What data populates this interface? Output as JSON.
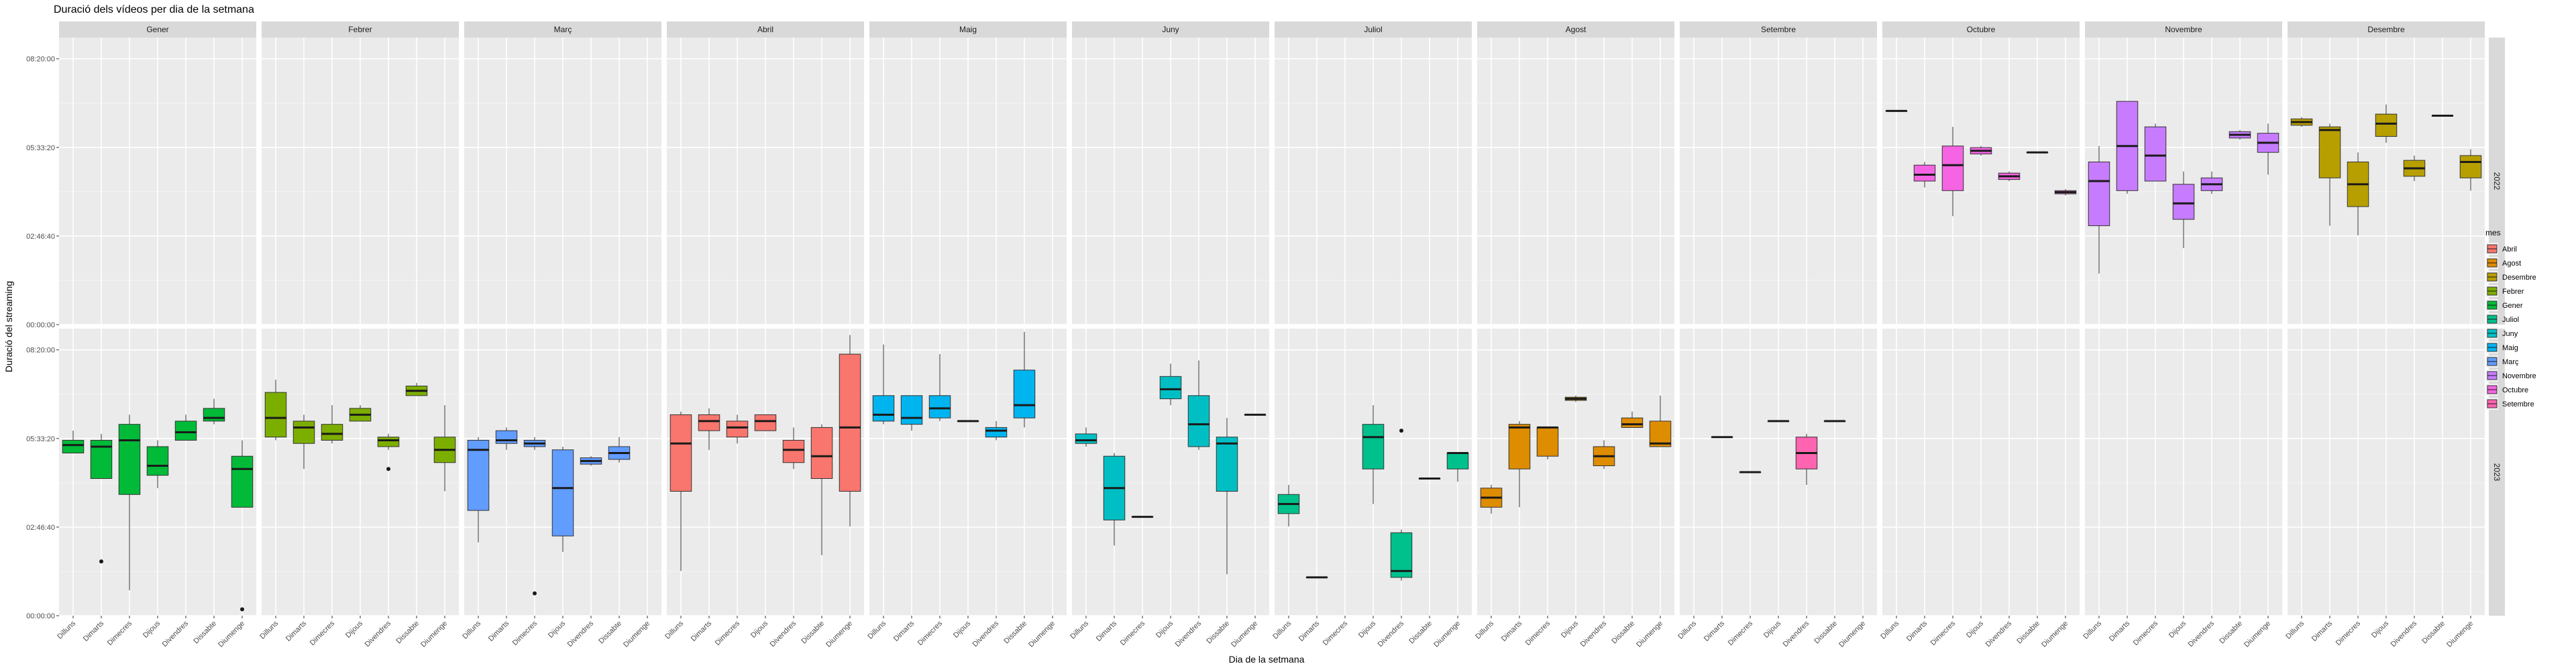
{
  "chart_data": {
    "type": "boxplot",
    "title": "Duració dels vídeos per dia de la setmana",
    "xlabel": "Dia de la setmana",
    "ylabel": "Duració del streaming",
    "y_unit": "hours",
    "ylim": [
      0,
      9
    ],
    "y_ticks": [
      {
        "value": 0,
        "label": "00:00:00"
      },
      {
        "value": 2.777,
        "label": "02:46:40"
      },
      {
        "value": 5.555,
        "label": "05:33:20"
      },
      {
        "value": 8.333,
        "label": "08:20:00"
      }
    ],
    "days": [
      "Dilluns",
      "Dimarts",
      "Dimecres",
      "Dijous",
      "Divendres",
      "Dissabte",
      "Diumenge"
    ],
    "months": [
      "Gener",
      "Febrer",
      "Març",
      "Abril",
      "Maig",
      "Juny",
      "Juliol",
      "Agost",
      "Setembre",
      "Octubre",
      "Novembre",
      "Desembre"
    ],
    "years": [
      "2022",
      "2023"
    ],
    "legend": {
      "title": "mes",
      "placement": "right",
      "entries": [
        {
          "label": "Abril",
          "color": "#F8766D"
        },
        {
          "label": "Agost",
          "color": "#DE8C00"
        },
        {
          "label": "Desembre",
          "color": "#B79F00"
        },
        {
          "label": "Febrer",
          "color": "#7CAE00"
        },
        {
          "label": "Gener",
          "color": "#00BA38"
        },
        {
          "label": "Juliol",
          "color": "#00C08B"
        },
        {
          "label": "Juny",
          "color": "#00BFC4"
        },
        {
          "label": "Maig",
          "color": "#00B4F0"
        },
        {
          "label": "Març",
          "color": "#619CFF"
        },
        {
          "label": "Novembre",
          "color": "#C77CFF"
        },
        {
          "label": "Octubre",
          "color": "#F564E3"
        },
        {
          "label": "Setembre",
          "color": "#FF64B0"
        }
      ]
    },
    "panels": [
      {
        "year": "2022",
        "month": "Octubre",
        "boxes": [
          {
            "day": 0,
            "min": 6.7,
            "q1": 6.7,
            "median": 6.7,
            "q3": 6.7,
            "max": 6.7
          },
          {
            "day": 1,
            "min": 4.3,
            "q1": 4.5,
            "median": 4.7,
            "q3": 5.0,
            "max": 5.1
          },
          {
            "day": 2,
            "min": 3.4,
            "q1": 4.2,
            "median": 5.0,
            "q3": 5.6,
            "max": 6.2
          },
          {
            "day": 3,
            "min": 5.3,
            "q1": 5.35,
            "median": 5.45,
            "q3": 5.55,
            "max": 5.6
          },
          {
            "day": 4,
            "min": 4.5,
            "q1": 4.55,
            "median": 4.65,
            "q3": 4.75,
            "max": 4.8
          },
          {
            "day": 5,
            "min": 5.4,
            "q1": 5.4,
            "median": 5.4,
            "q3": 5.4,
            "max": 5.4
          },
          {
            "day": 6,
            "min": 4.05,
            "q1": 4.1,
            "median": 4.15,
            "q3": 4.2,
            "max": 4.25
          }
        ]
      },
      {
        "year": "2022",
        "month": "Novembre",
        "boxes": [
          {
            "day": 0,
            "min": 1.6,
            "q1": 3.1,
            "median": 4.5,
            "q3": 5.1,
            "max": 5.6
          },
          {
            "day": 1,
            "min": 4.1,
            "q1": 4.2,
            "median": 5.6,
            "q3": 7.0,
            "max": 7.0
          },
          {
            "day": 2,
            "min": 4.5,
            "q1": 4.5,
            "median": 5.3,
            "q3": 6.2,
            "max": 6.3
          },
          {
            "day": 3,
            "min": 2.4,
            "q1": 3.3,
            "median": 3.8,
            "q3": 4.4,
            "max": 4.8
          },
          {
            "day": 4,
            "min": 4.1,
            "q1": 4.2,
            "median": 4.4,
            "q3": 4.6,
            "max": 4.8
          },
          {
            "day": 5,
            "min": 5.8,
            "q1": 5.85,
            "median": 5.95,
            "q3": 6.05,
            "max": 6.1
          },
          {
            "day": 6,
            "min": 4.7,
            "q1": 5.4,
            "median": 5.7,
            "q3": 6.0,
            "max": 6.3
          }
        ]
      },
      {
        "year": "2022",
        "month": "Desembre",
        "boxes": [
          {
            "day": 0,
            "min": 6.2,
            "q1": 6.25,
            "median": 6.35,
            "q3": 6.45,
            "max": 6.5
          },
          {
            "day": 1,
            "min": 3.1,
            "q1": 4.6,
            "median": 6.1,
            "q3": 6.2,
            "max": 6.3
          },
          {
            "day": 2,
            "min": 2.8,
            "q1": 3.7,
            "median": 4.4,
            "q3": 5.1,
            "max": 5.4
          },
          {
            "day": 3,
            "min": 5.7,
            "q1": 5.9,
            "median": 6.3,
            "q3": 6.6,
            "max": 6.9
          },
          {
            "day": 4,
            "min": 4.5,
            "q1": 4.65,
            "median": 4.9,
            "q3": 5.15,
            "max": 5.3
          },
          {
            "day": 5,
            "min": 6.55,
            "q1": 6.55,
            "median": 6.55,
            "q3": 6.55,
            "max": 6.55
          },
          {
            "day": 6,
            "min": 4.2,
            "q1": 4.6,
            "median": 5.1,
            "q3": 5.3,
            "max": 5.5
          }
        ]
      },
      {
        "year": "2023",
        "month": "Gener",
        "boxes": [
          {
            "day": 0,
            "min": 5.1,
            "q1": 5.1,
            "median": 5.35,
            "q3": 5.5,
            "max": 5.8
          },
          {
            "day": 1,
            "min": 4.3,
            "q1": 4.3,
            "median": 5.3,
            "q3": 5.5,
            "max": 5.7,
            "outliers": [
              1.7
            ]
          },
          {
            "day": 2,
            "min": 0.8,
            "q1": 3.8,
            "median": 5.5,
            "q3": 6.0,
            "max": 6.3
          },
          {
            "day": 3,
            "min": 4.0,
            "q1": 4.4,
            "median": 4.7,
            "q3": 5.3,
            "max": 5.5
          },
          {
            "day": 4,
            "min": 5.5,
            "q1": 5.5,
            "median": 5.75,
            "q3": 6.1,
            "max": 6.3
          },
          {
            "day": 5,
            "min": 6.0,
            "q1": 6.1,
            "median": 6.2,
            "q3": 6.5,
            "max": 6.8
          },
          {
            "day": 6,
            "min": 3.4,
            "q1": 3.4,
            "median": 4.6,
            "q3": 5.0,
            "max": 5.5,
            "outliers": [
              0.2
            ]
          }
        ]
      },
      {
        "year": "2023",
        "month": "Febrer",
        "boxes": [
          {
            "day": 0,
            "min": 5.5,
            "q1": 5.6,
            "median": 6.2,
            "q3": 7.0,
            "max": 7.4
          },
          {
            "day": 1,
            "min": 4.6,
            "q1": 5.4,
            "median": 5.9,
            "q3": 6.1,
            "max": 6.3
          },
          {
            "day": 2,
            "min": 5.4,
            "q1": 5.5,
            "median": 5.7,
            "q3": 6.0,
            "max": 6.6
          },
          {
            "day": 3,
            "min": 6.1,
            "q1": 6.1,
            "median": 6.3,
            "q3": 6.5,
            "max": 6.6
          },
          {
            "day": 4,
            "min": 5.2,
            "q1": 5.3,
            "median": 5.5,
            "q3": 5.6,
            "max": 5.7,
            "outliers": [
              4.6
            ]
          },
          {
            "day": 5,
            "min": 6.9,
            "q1": 6.9,
            "median": 7.05,
            "q3": 7.2,
            "max": 7.3
          },
          {
            "day": 6,
            "min": 3.9,
            "q1": 4.8,
            "median": 5.2,
            "q3": 5.6,
            "max": 6.6
          }
        ]
      },
      {
        "year": "2023",
        "month": "Març",
        "boxes": [
          {
            "day": 0,
            "min": 2.3,
            "q1": 3.3,
            "median": 5.2,
            "q3": 5.5,
            "max": 5.6
          },
          {
            "day": 1,
            "min": 5.2,
            "q1": 5.4,
            "median": 5.5,
            "q3": 5.8,
            "max": 5.9
          },
          {
            "day": 2,
            "min": 5.2,
            "q1": 5.3,
            "median": 5.4,
            "q3": 5.5,
            "max": 5.6,
            "outliers": [
              0.7
            ]
          },
          {
            "day": 3,
            "min": 2.0,
            "q1": 2.5,
            "median": 4.0,
            "q3": 5.2,
            "max": 5.3
          },
          {
            "day": 4,
            "min": 4.7,
            "q1": 4.75,
            "median": 4.85,
            "q3": 4.95,
            "max": 5.0
          },
          {
            "day": 5,
            "min": 4.8,
            "q1": 4.9,
            "median": 5.1,
            "q3": 5.3,
            "max": 5.6
          },
          {
            "day": 6
          }
        ]
      },
      {
        "year": "2023",
        "month": "Abril",
        "boxes": [
          {
            "day": 0,
            "min": 1.4,
            "q1": 3.9,
            "median": 5.4,
            "q3": 6.3,
            "max": 6.4
          },
          {
            "day": 1,
            "min": 5.2,
            "q1": 5.8,
            "median": 6.1,
            "q3": 6.3,
            "max": 6.5
          },
          {
            "day": 2,
            "min": 5.4,
            "q1": 5.6,
            "median": 5.9,
            "q3": 6.1,
            "max": 6.3
          },
          {
            "day": 3,
            "min": 5.8,
            "q1": 5.8,
            "median": 6.1,
            "q3": 6.3,
            "max": 6.3
          },
          {
            "day": 4,
            "min": 4.6,
            "q1": 4.8,
            "median": 5.2,
            "q3": 5.5,
            "max": 5.9
          },
          {
            "day": 5,
            "min": 1.9,
            "q1": 4.3,
            "median": 5.0,
            "q3": 5.9,
            "max": 6.0
          },
          {
            "day": 6,
            "min": 2.8,
            "q1": 3.9,
            "median": 5.9,
            "q3": 8.2,
            "max": 8.8
          }
        ]
      },
      {
        "year": "2023",
        "month": "Maig",
        "boxes": [
          {
            "day": 0,
            "min": 6.0,
            "q1": 6.1,
            "median": 6.3,
            "q3": 6.9,
            "max": 8.5
          },
          {
            "day": 1,
            "min": 5.8,
            "q1": 6.0,
            "median": 6.2,
            "q3": 6.9,
            "max": 6.9
          },
          {
            "day": 2,
            "min": 6.1,
            "q1": 6.2,
            "median": 6.5,
            "q3": 6.9,
            "max": 8.2
          },
          {
            "day": 3,
            "min": 6.1,
            "q1": 6.1,
            "median": 6.1,
            "q3": 6.1,
            "max": 6.1
          },
          {
            "day": 4,
            "min": 5.5,
            "q1": 5.6,
            "median": 5.8,
            "q3": 5.9,
            "max": 6.1
          },
          {
            "day": 5,
            "min": 5.9,
            "q1": 6.2,
            "median": 6.6,
            "q3": 7.7,
            "max": 8.9
          },
          {
            "day": 6
          }
        ]
      },
      {
        "year": "2023",
        "month": "Juny",
        "boxes": [
          {
            "day": 0,
            "min": 5.3,
            "q1": 5.4,
            "median": 5.5,
            "q3": 5.7,
            "max": 5.9
          },
          {
            "day": 1,
            "min": 2.2,
            "q1": 3.0,
            "median": 4.0,
            "q3": 5.0,
            "max": 5.1
          },
          {
            "day": 2,
            "min": 3.1,
            "q1": 3.1,
            "median": 3.1,
            "q3": 3.1,
            "max": 3.1
          },
          {
            "day": 3,
            "min": 6.6,
            "q1": 6.8,
            "median": 7.1,
            "q3": 7.5,
            "max": 7.9
          },
          {
            "day": 4,
            "min": 5.2,
            "q1": 5.3,
            "median": 6.0,
            "q3": 6.9,
            "max": 8.0
          },
          {
            "day": 5,
            "min": 1.3,
            "q1": 3.9,
            "median": 5.4,
            "q3": 5.6,
            "max": 6.2
          },
          {
            "day": 6,
            "min": 6.3,
            "q1": 6.3,
            "median": 6.3,
            "q3": 6.3,
            "max": 6.3
          }
        ]
      },
      {
        "year": "2023",
        "month": "Juliol",
        "boxes": [
          {
            "day": 0,
            "min": 2.8,
            "q1": 3.2,
            "median": 3.5,
            "q3": 3.8,
            "max": 4.1
          },
          {
            "day": 1,
            "min": 1.2,
            "q1": 1.2,
            "median": 1.2,
            "q3": 1.2,
            "max": 1.2
          },
          {
            "day": 3,
            "min": 3.5,
            "q1": 4.6,
            "median": 5.6,
            "q3": 6.0,
            "max": 6.6
          },
          {
            "day": 4,
            "min": 1.1,
            "q1": 1.2,
            "median": 1.4,
            "q3": 2.6,
            "max": 2.7,
            "outliers": [
              5.8
            ]
          },
          {
            "day": 5,
            "min": 4.3,
            "q1": 4.3,
            "median": 4.3,
            "q3": 4.3,
            "max": 4.3
          },
          {
            "day": 6,
            "min": 4.2,
            "q1": 4.6,
            "median": 5.1,
            "q3": 5.1,
            "max": 5.1
          }
        ]
      },
      {
        "year": "2023",
        "month": "Agost",
        "boxes": [
          {
            "day": 0,
            "min": 3.2,
            "q1": 3.4,
            "median": 3.7,
            "q3": 4.0,
            "max": 4.1
          },
          {
            "day": 1,
            "min": 3.4,
            "q1": 4.6,
            "median": 5.9,
            "q3": 6.0,
            "max": 6.1
          },
          {
            "day": 2,
            "min": 4.9,
            "q1": 5.0,
            "median": 5.9,
            "q3": 5.9,
            "max": 5.9
          },
          {
            "day": 3,
            "min": 6.7,
            "q1": 6.75,
            "median": 6.8,
            "q3": 6.85,
            "max": 6.9
          },
          {
            "day": 4,
            "min": 4.6,
            "q1": 4.7,
            "median": 5.0,
            "q3": 5.3,
            "max": 5.5
          },
          {
            "day": 5,
            "min": 5.9,
            "q1": 5.9,
            "median": 6.0,
            "q3": 6.2,
            "max": 6.4
          },
          {
            "day": 6,
            "min": 5.3,
            "q1": 5.3,
            "median": 5.4,
            "q3": 6.1,
            "max": 6.9
          }
        ]
      },
      {
        "year": "2023",
        "month": "Setembre",
        "boxes": [
          {
            "day": 1,
            "min": 5.6,
            "q1": 5.6,
            "median": 5.6,
            "q3": 5.6,
            "max": 5.6
          },
          {
            "day": 2,
            "min": 4.5,
            "q1": 4.5,
            "median": 4.5,
            "q3": 4.5,
            "max": 4.5
          },
          {
            "day": 3,
            "min": 6.1,
            "q1": 6.1,
            "median": 6.1,
            "q3": 6.1,
            "max": 6.1
          },
          {
            "day": 4,
            "min": 4.1,
            "q1": 4.6,
            "median": 5.1,
            "q3": 5.6,
            "max": 5.7
          },
          {
            "day": 5,
            "min": 6.1,
            "q1": 6.1,
            "median": 6.1,
            "q3": 6.1,
            "max": 6.1
          }
        ]
      }
    ]
  }
}
